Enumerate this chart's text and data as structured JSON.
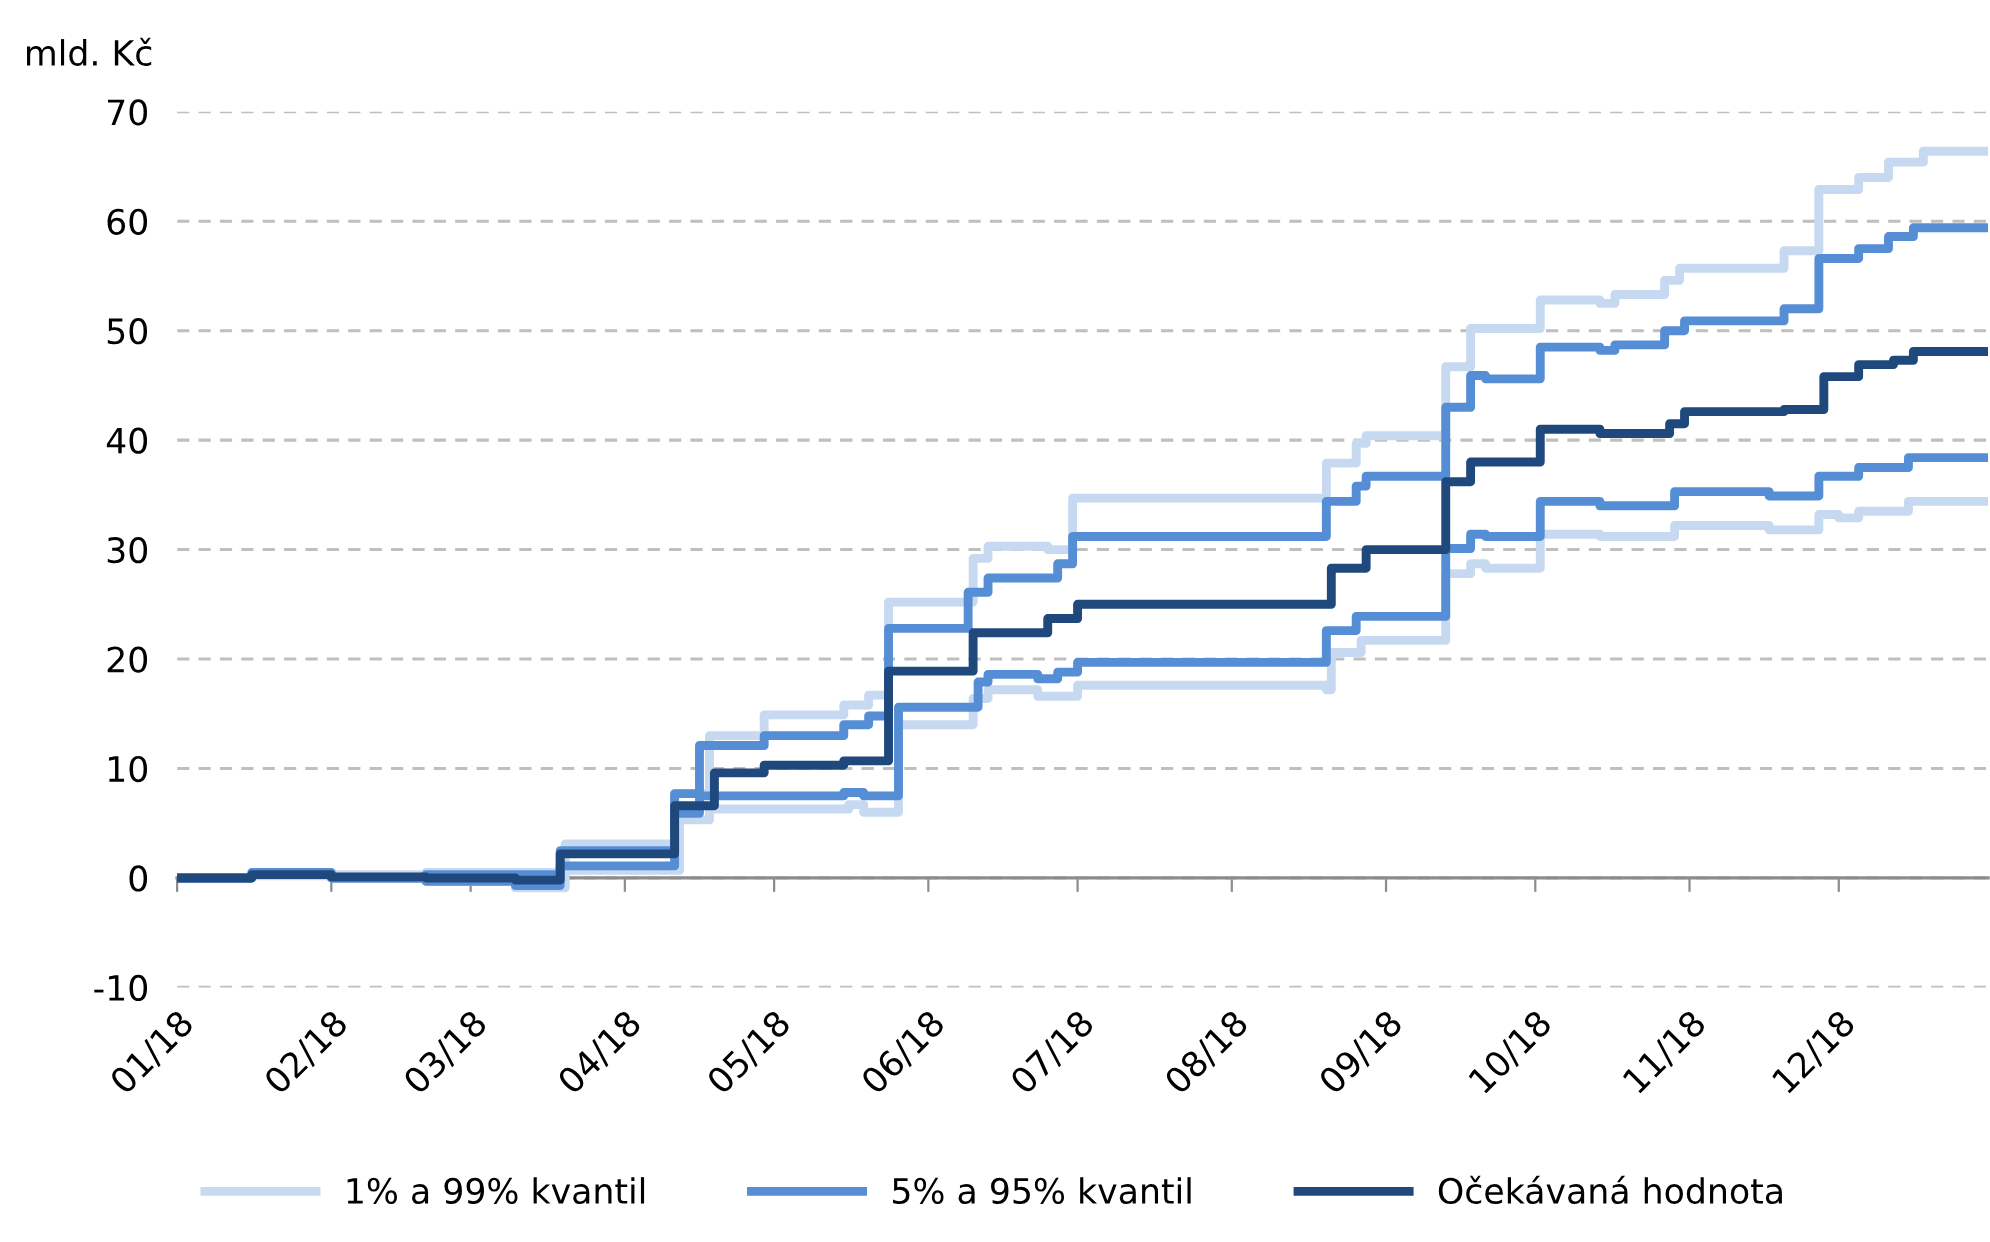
{
  "chart_data": {
    "type": "step",
    "ylabel": "mld. Kč",
    "xlim": [
      "2018-01-01",
      "2018-12-31"
    ],
    "xticks": [
      {
        "value": "2018-01-01",
        "label": "01/18"
      },
      {
        "value": "2018-02-01",
        "label": "02/18"
      },
      {
        "value": "2018-03-01",
        "label": "03/18"
      },
      {
        "value": "2018-04-01",
        "label": "04/18"
      },
      {
        "value": "2018-05-01",
        "label": "05/18"
      },
      {
        "value": "2018-06-01",
        "label": "06/18"
      },
      {
        "value": "2018-07-01",
        "label": "07/18"
      },
      {
        "value": "2018-08-01",
        "label": "08/18"
      },
      {
        "value": "2018-09-01",
        "label": "09/18"
      },
      {
        "value": "2018-10-01",
        "label": "10/18"
      },
      {
        "value": "2018-11-01",
        "label": "11/18"
      },
      {
        "value": "2018-12-01",
        "label": "12/18"
      }
    ],
    "ylim": [
      -10,
      70
    ],
    "yticks": [
      -10,
      0,
      10,
      20,
      30,
      40,
      50,
      60,
      70
    ],
    "grid": "y",
    "legend": "bottom",
    "line_style": "solid",
    "marker": "none",
    "series": [
      {
        "name": "1% a 99% kvantil",
        "color": "#c6d9f1",
        "x": [
          "2018-01-01",
          "2018-01-16",
          "2018-02-01",
          "2018-02-20",
          "2018-03-10",
          "2018-03-20",
          "2018-04-12",
          "2018-04-18",
          "2018-05-16",
          "2018-05-19",
          "2018-05-26",
          "2018-06-10",
          "2018-06-13",
          "2018-06-23",
          "2018-07-01",
          "2018-08-20",
          "2018-08-21",
          "2018-08-27",
          "2018-09-13",
          "2018-09-18",
          "2018-09-21",
          "2018-10-02",
          "2018-10-14",
          "2018-10-29",
          "2018-11-17",
          "2018-11-27",
          "2018-12-01",
          "2018-12-05",
          "2018-12-15",
          "2018-12-31"
        ],
        "values": [
          0,
          0.2,
          0,
          -0.3,
          -0.9,
          0.7,
          5.3,
          6.3,
          6.7,
          6.0,
          14.0,
          16.4,
          17.2,
          16.6,
          17.6,
          17.2,
          20.6,
          21.7,
          27.8,
          28.7,
          28.3,
          31.4,
          31.2,
          32.2,
          31.8,
          33.2,
          32.9,
          33.5,
          34.4,
          34.4
        ]
      },
      {
        "color": "#c6d9f1",
        "x": [
          "2018-01-01",
          "2018-01-16",
          "2018-02-20",
          "2018-03-20",
          "2018-04-11",
          "2018-04-18",
          "2018-04-29",
          "2018-05-15",
          "2018-05-20",
          "2018-05-24",
          "2018-06-10",
          "2018-06-13",
          "2018-06-25",
          "2018-06-30",
          "2018-08-20",
          "2018-08-26",
          "2018-08-28",
          "2018-09-13",
          "2018-09-18",
          "2018-10-02",
          "2018-10-14",
          "2018-10-17",
          "2018-10-27",
          "2018-10-30",
          "2018-11-20",
          "2018-11-27",
          "2018-12-05",
          "2018-12-11",
          "2018-12-18",
          "2018-12-31"
        ],
        "values": [
          0,
          0.3,
          0.5,
          3.1,
          7.7,
          13.0,
          14.9,
          15.8,
          16.7,
          25.2,
          29.2,
          30.3,
          30.0,
          34.7,
          37.9,
          39.7,
          40.4,
          46.7,
          50.2,
          52.8,
          52.5,
          53.3,
          54.6,
          55.7,
          57.3,
          62.9,
          64.0,
          65.4,
          66.4,
          66.4
        ]
      },
      {
        "name": "5% a 95% kvantil",
        "color": "#558ed5",
        "x": [
          "2018-01-01",
          "2018-01-16",
          "2018-02-01",
          "2018-02-20",
          "2018-03-10",
          "2018-03-19",
          "2018-04-11",
          "2018-04-16",
          "2018-05-15",
          "2018-05-19",
          "2018-05-26",
          "2018-06-11",
          "2018-06-13",
          "2018-06-23",
          "2018-06-27",
          "2018-07-01",
          "2018-08-20",
          "2018-08-26",
          "2018-09-13",
          "2018-09-18",
          "2018-09-21",
          "2018-10-02",
          "2018-10-14",
          "2018-10-29",
          "2018-11-17",
          "2018-11-27",
          "2018-12-05",
          "2018-12-15",
          "2018-12-31"
        ],
        "values": [
          0,
          0.3,
          0,
          -0.3,
          -0.7,
          1.1,
          5.9,
          7.5,
          7.8,
          7.5,
          15.6,
          17.9,
          18.6,
          18.2,
          18.8,
          19.7,
          22.6,
          23.9,
          30.1,
          31.4,
          31.2,
          34.4,
          34.0,
          35.3,
          34.9,
          36.7,
          37.5,
          38.4,
          38.4
        ]
      },
      {
        "color": "#558ed5",
        "x": [
          "2018-01-01",
          "2018-01-16",
          "2018-02-01",
          "2018-02-20",
          "2018-03-19",
          "2018-04-11",
          "2018-04-16",
          "2018-04-29",
          "2018-05-15",
          "2018-05-20",
          "2018-05-24",
          "2018-06-09",
          "2018-06-13",
          "2018-06-27",
          "2018-06-30",
          "2018-08-20",
          "2018-08-26",
          "2018-08-28",
          "2018-09-13",
          "2018-09-18",
          "2018-09-21",
          "2018-10-02",
          "2018-10-14",
          "2018-10-17",
          "2018-10-27",
          "2018-10-31",
          "2018-11-20",
          "2018-11-27",
          "2018-12-05",
          "2018-12-11",
          "2018-12-16",
          "2018-12-31"
        ],
        "values": [
          0,
          0.5,
          0,
          0.3,
          2.5,
          7.7,
          12.1,
          13.0,
          14.0,
          14.8,
          22.8,
          26.1,
          27.4,
          28.7,
          31.2,
          34.4,
          35.8,
          36.7,
          43.0,
          45.9,
          45.6,
          48.5,
          48.2,
          48.7,
          50.0,
          50.9,
          52.0,
          56.6,
          57.5,
          58.6,
          59.4,
          59.4
        ]
      },
      {
        "name": "Očekávaná hodnota",
        "color": "#1f497d",
        "x": [
          "2018-01-01",
          "2018-01-16",
          "2018-02-01",
          "2018-02-20",
          "2018-03-10",
          "2018-03-19",
          "2018-04-11",
          "2018-04-19",
          "2018-04-29",
          "2018-05-15",
          "2018-05-24",
          "2018-06-10",
          "2018-06-25",
          "2018-07-01",
          "2018-08-21",
          "2018-08-28",
          "2018-09-13",
          "2018-09-18",
          "2018-10-02",
          "2018-10-14",
          "2018-10-28",
          "2018-10-31",
          "2018-11-20",
          "2018-11-28",
          "2018-12-05",
          "2018-12-12",
          "2018-12-16",
          "2018-12-31"
        ],
        "values": [
          0,
          0.3,
          0.1,
          0,
          -0.2,
          2.2,
          6.6,
          9.6,
          10.3,
          10.7,
          18.9,
          22.4,
          23.7,
          25.0,
          28.3,
          30.0,
          36.2,
          38.0,
          41.0,
          40.6,
          41.5,
          42.6,
          42.8,
          45.8,
          46.9,
          47.3,
          48.1,
          48.1
        ]
      }
    ]
  }
}
